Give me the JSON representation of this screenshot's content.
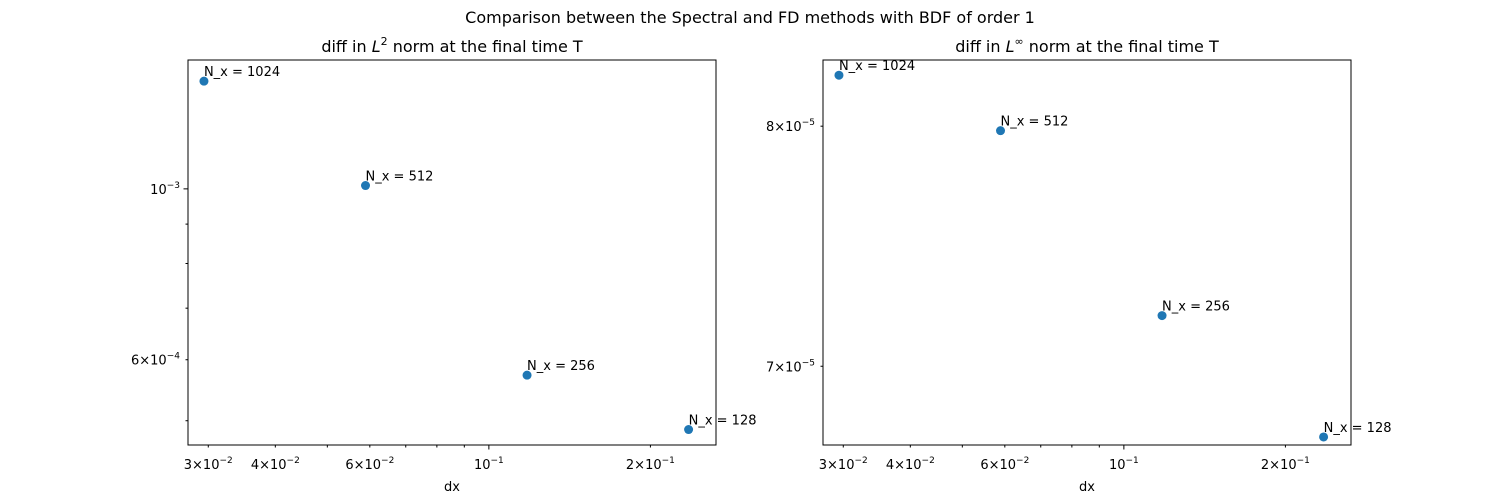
{
  "figure_title": "Comparison between the Spectral and FD methods with BDF of order 1",
  "colors": {
    "marker": "#1f77b4",
    "axes": "#000000",
    "background": "#ffffff"
  },
  "chart_data": [
    {
      "type": "scatter",
      "title": "diff in $L^2$ norm at the final time T",
      "title_parts": {
        "before": "diff in ",
        "base": "L",
        "sup": "2",
        "after": " norm at the final time T"
      },
      "xlabel": "dx",
      "ylabel": "",
      "xscale": "log",
      "yscale": "log",
      "grid": false,
      "xlim": [
        0.0275,
        0.265
      ],
      "ylim": [
        0.000465,
        0.00147
      ],
      "x_major_ticks": [
        {
          "value": 0.1,
          "mantissa": "",
          "base": "10",
          "exp": "−1"
        }
      ],
      "x_minor_labeled_ticks": [
        {
          "value": 0.03,
          "mantissa": "3",
          "base": "10",
          "exp": "−2"
        },
        {
          "value": 0.04,
          "mantissa": "4",
          "base": "10",
          "exp": "−2"
        },
        {
          "value": 0.06,
          "mantissa": "6",
          "base": "10",
          "exp": "−2"
        },
        {
          "value": 0.2,
          "mantissa": "2",
          "base": "10",
          "exp": "−1"
        }
      ],
      "x_minor_unlabeled_ticks": [
        0.05,
        0.07,
        0.08,
        0.09
      ],
      "y_major_ticks": [
        {
          "value": 0.001,
          "mantissa": "",
          "base": "10",
          "exp": "−3"
        }
      ],
      "y_minor_labeled_ticks": [
        {
          "value": 0.0006,
          "mantissa": "6",
          "base": "10",
          "exp": "−4"
        }
      ],
      "y_minor_unlabeled_ticks": [
        0.0005,
        0.0007,
        0.0008,
        0.0009
      ],
      "points": [
        {
          "x": 0.02945,
          "y": 0.00138,
          "label": "N_x = 1024"
        },
        {
          "x": 0.0589,
          "y": 0.00101,
          "label": "N_x = 512"
        },
        {
          "x": 0.1178,
          "y": 0.000573,
          "label": "N_x = 256"
        },
        {
          "x": 0.2356,
          "y": 0.000487,
          "label": "N_x = 128"
        }
      ]
    },
    {
      "type": "scatter",
      "title": "diff in $L^\\infty$ norm at the final time T",
      "title_parts": {
        "before": "diff in ",
        "base": "L",
        "sup": "∞",
        "after": " norm at the final time T"
      },
      "xlabel": "dx",
      "ylabel": "",
      "xscale": "log",
      "yscale": "log",
      "grid": false,
      "xlim": [
        0.0275,
        0.265
      ],
      "ylim": [
        6.7e-05,
        8.3e-05
      ],
      "x_major_ticks": [
        {
          "value": 0.1,
          "mantissa": "",
          "base": "10",
          "exp": "−1"
        }
      ],
      "x_minor_labeled_ticks": [
        {
          "value": 0.03,
          "mantissa": "3",
          "base": "10",
          "exp": "−2"
        },
        {
          "value": 0.04,
          "mantissa": "4",
          "base": "10",
          "exp": "−2"
        },
        {
          "value": 0.06,
          "mantissa": "6",
          "base": "10",
          "exp": "−2"
        },
        {
          "value": 0.2,
          "mantissa": "2",
          "base": "10",
          "exp": "−1"
        }
      ],
      "x_minor_unlabeled_ticks": [
        0.05,
        0.07,
        0.08,
        0.09
      ],
      "y_major_ticks": [],
      "y_minor_labeled_ticks": [
        {
          "value": 7e-05,
          "mantissa": "7",
          "base": "10",
          "exp": "−5"
        },
        {
          "value": 8e-05,
          "mantissa": "8",
          "base": "10",
          "exp": "−5"
        }
      ],
      "y_minor_unlabeled_ticks": [],
      "points": [
        {
          "x": 0.02945,
          "y": 8.23e-05,
          "label": "N_x = 1024"
        },
        {
          "x": 0.0589,
          "y": 7.98e-05,
          "label": "N_x = 512"
        },
        {
          "x": 0.1178,
          "y": 7.2e-05,
          "label": "N_x = 256"
        },
        {
          "x": 0.2356,
          "y": 6.73e-05,
          "label": "N_x = 128"
        }
      ]
    }
  ]
}
